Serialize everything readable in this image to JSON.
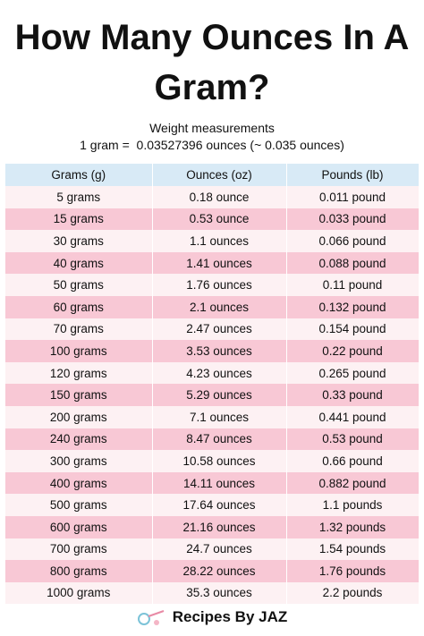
{
  "header": {
    "title": "How Many Ounces In A Gram?",
    "subtitle": "Weight measurements",
    "formula": "1 gram =  0.03527396 ounces (~ 0.035 ounces)"
  },
  "table": {
    "columns": [
      "Grams (g)",
      "Ounces (oz)",
      "Pounds (lb)"
    ],
    "rows": [
      [
        "5 grams",
        "0.18 ounce",
        "0.011 pound"
      ],
      [
        "15 grams",
        "0.53 ounce",
        "0.033 pound"
      ],
      [
        "30 grams",
        "1.1 ounces",
        "0.066 pound"
      ],
      [
        "40 grams",
        "1.41 ounces",
        "0.088 pound"
      ],
      [
        "50 grams",
        "1.76 ounces",
        "0.11 pound"
      ],
      [
        "60 grams",
        "2.1 ounces",
        "0.132 pound"
      ],
      [
        "70 grams",
        "2.47 ounces",
        "0.154 pound"
      ],
      [
        "100 grams",
        "3.53 ounces",
        "0.22 pound"
      ],
      [
        "120 grams",
        "4.23 ounces",
        "0.265 pound"
      ],
      [
        "150 grams",
        "5.29 ounces",
        "0.33 pound"
      ],
      [
        "200 grams",
        "7.1 ounces",
        "0.441 pound"
      ],
      [
        "240 grams",
        "8.47 ounces",
        "0.53 pound"
      ],
      [
        "300 grams",
        "10.58 ounces",
        "0.66 pound"
      ],
      [
        "400 grams",
        "14.11 ounces",
        "0.882 pound"
      ],
      [
        "500 grams",
        "17.64 ounces",
        "1.1 pounds"
      ],
      [
        "600 grams",
        "21.16 ounces",
        "1.32 pounds"
      ],
      [
        "700 grams",
        "24.7 ounces",
        "1.54 pounds"
      ],
      [
        "800 grams",
        "28.22 ounces",
        "1.76 pounds"
      ],
      [
        "1000 grams",
        "35.3 ounces",
        "2.2 pounds"
      ]
    ]
  },
  "footer": {
    "brand": "Recipes By JAZ"
  }
}
